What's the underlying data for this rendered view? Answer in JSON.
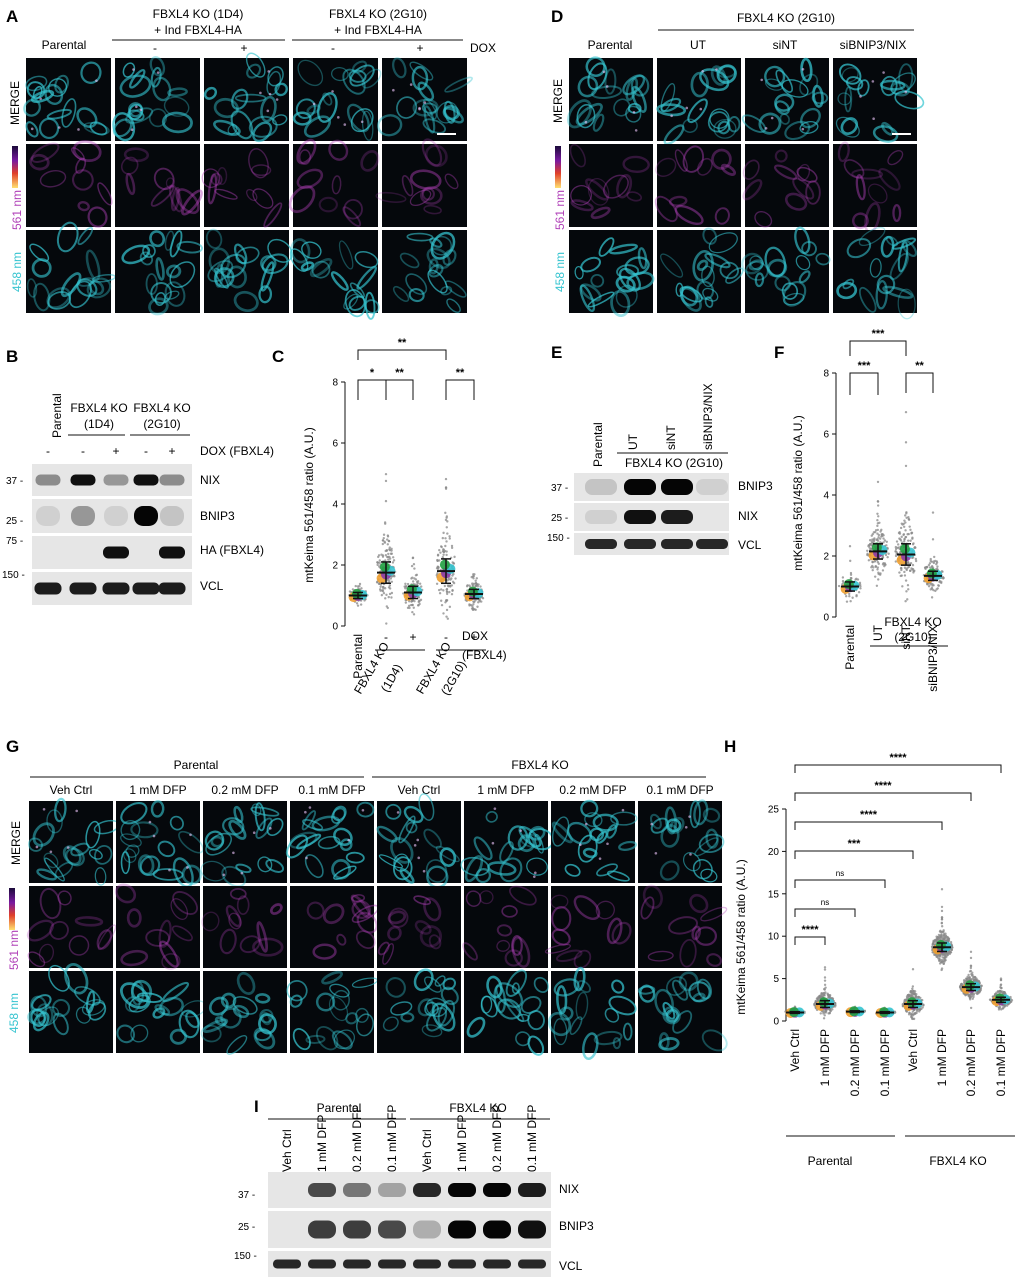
{
  "panel_letters": {
    "A": "A",
    "B": "B",
    "C": "C",
    "D": "D",
    "E": "E",
    "F": "F",
    "G": "G",
    "H": "H",
    "I": "I"
  },
  "channels": {
    "merge": "MERGE",
    "c561": "561 nm",
    "c458": "458 nm"
  },
  "colors": {
    "cyan": "#35c4d0",
    "magenta": "#b040b8",
    "orange": "#f0a030",
    "green": "#20a040",
    "purple": "#8a3aa8",
    "tile_bg": "#05080c"
  },
  "panelA": {
    "parental": "Parental",
    "group1": "FBXL4 KO (1D4)",
    "group1b": "+ Ind FBXL4-HA",
    "group2": "FBXL4 KO (2G10)",
    "group2b": "+ Ind FBXL4-HA",
    "minus": "-",
    "plus": "+",
    "dox": "DOX"
  },
  "panelB": {
    "lanes": [
      "Parental",
      "FBXL4 KO",
      "(1D4)",
      "FBXL4 KO",
      "(2G10)"
    ],
    "dox_row": [
      "-",
      "-",
      "+",
      "-",
      "+"
    ],
    "dox_label": "DOX (FBXL4)",
    "bands": [
      "NIX",
      "BNIP3",
      "HA (FBXL4)",
      "VCL"
    ],
    "mw": [
      "37 -",
      "25 -",
      "75 -",
      "150 -"
    ]
  },
  "panelC": {
    "ylabel": "mtKeima 561/458 ratio (A.U.)",
    "yticks": [
      "0",
      "2",
      "4",
      "6",
      "8"
    ],
    "xlabels": [
      "Parental",
      "-",
      "+",
      "-",
      "+"
    ],
    "dox": "DOX",
    "dox2": "(FBXL4)",
    "group1": "FBXL4 KO",
    "group1b": "(1D4)",
    "group2": "FBXL4 KO",
    "group2b": "(2G10)",
    "sig": [
      "**",
      "*",
      "**",
      "**"
    ]
  },
  "panelD": {
    "header": "FBXL4 KO (2G10)",
    "cols": [
      "Parental",
      "UT",
      "siNT",
      "siBNIP3/NIX"
    ]
  },
  "panelE": {
    "lanes": [
      "Parental",
      "UT",
      "siNT",
      "siBNIP3/NIX"
    ],
    "group": "FBXL4 KO (2G10)",
    "bands": [
      "BNIP3",
      "NIX",
      "VCL"
    ],
    "mw": [
      "37 -",
      "25 -",
      "150 -"
    ]
  },
  "panelF": {
    "ylabel": "mtKeima 561/458 ratio (A.U.)",
    "yticks": [
      "0",
      "2",
      "4",
      "6",
      "8"
    ],
    "xlabels": [
      "Parental",
      "UT",
      "siNT",
      "siBNIP3/NIX"
    ],
    "group": "FBXL4 KO",
    "group2": "(2G10)",
    "sig": [
      "***",
      "***",
      "**"
    ]
  },
  "panelG": {
    "parental": "Parental",
    "ko": "FBXL4 KO",
    "cols": [
      "Veh Ctrl",
      "1 mM DFP",
      "0.2 mM DFP",
      "0.1 mM DFP",
      "Veh Ctrl",
      "1 mM DFP",
      "0.2 mM DFP",
      "0.1 mM DFP"
    ]
  },
  "panelH": {
    "ylabel": "mtKeima 561/458 ratio (A.U.)",
    "yticks": [
      "0",
      "5",
      "10",
      "15",
      "20",
      "25"
    ],
    "xlabels": [
      "Veh Ctrl",
      "1 mM DFP",
      "0.2 mM DFP",
      "0.1 mM DFP",
      "Veh Ctrl",
      "1 mM DFP",
      "0.2 mM DFP",
      "0.1 mM DFP"
    ],
    "parental": "Parental",
    "ko": "FBXL4 KO",
    "sig": [
      "****",
      "****",
      "****",
      "***",
      "ns",
      "ns",
      "****"
    ]
  },
  "panelI": {
    "parental": "Parental",
    "ko": "FBXL4 KO",
    "lanes": [
      "Veh Ctrl",
      "1 mM DFP",
      "0.2 mM DFP",
      "0.1 mM DFP",
      "Veh Ctrl",
      "1 mM DFP",
      "0.2 mM DFP",
      "0.1 mM DFP"
    ],
    "bands": [
      "NIX",
      "BNIP3",
      "VCL"
    ],
    "mw": [
      "37 -",
      "25 -",
      "150 -"
    ]
  },
  "chart_data": [
    {
      "type": "scatter",
      "panel": "C",
      "ylabel": "mtKeima 561/458 ratio (A.U.)",
      "ylim": [
        0,
        8
      ],
      "categories": [
        "Parental",
        "FBXL4 KO (1D4) -DOX",
        "FBXL4 KO (1D4) +DOX",
        "FBXL4 KO (2G10) -DOX",
        "FBXL4 KO (2G10) +DOX"
      ],
      "means": [
        1.0,
        1.75,
        1.1,
        1.8,
        1.05
      ],
      "sd": [
        0.1,
        0.35,
        0.2,
        0.4,
        0.15
      ]
    },
    {
      "type": "scatter",
      "panel": "F",
      "ylabel": "mtKeima 561/458 ratio (A.U.)",
      "ylim": [
        0,
        8
      ],
      "categories": [
        "Parental",
        "UT",
        "siNT",
        "siBNIP3/NIX"
      ],
      "means": [
        1.0,
        2.15,
        2.05,
        1.35
      ],
      "sd": [
        0.15,
        0.25,
        0.35,
        0.15
      ]
    },
    {
      "type": "scatter",
      "panel": "H",
      "ylabel": "mtKeima 561/458 ratio (A.U.)",
      "ylim": [
        0,
        25
      ],
      "categories": [
        "Parental Veh Ctrl",
        "Parental 1 mM DFP",
        "Parental 0.2 mM DFP",
        "Parental 0.1 mM DFP",
        "FBXL4 KO Veh Ctrl",
        "FBXL4 KO 1 mM DFP",
        "FBXL4 KO 0.2 mM DFP",
        "FBXL4 KO 0.1 mM DFP"
      ],
      "means": [
        1.0,
        2.0,
        1.1,
        1.0,
        2.0,
        8.7,
        4.0,
        2.5
      ],
      "sd": [
        0.1,
        0.4,
        0.1,
        0.1,
        0.4,
        0.5,
        0.4,
        0.3
      ]
    }
  ]
}
